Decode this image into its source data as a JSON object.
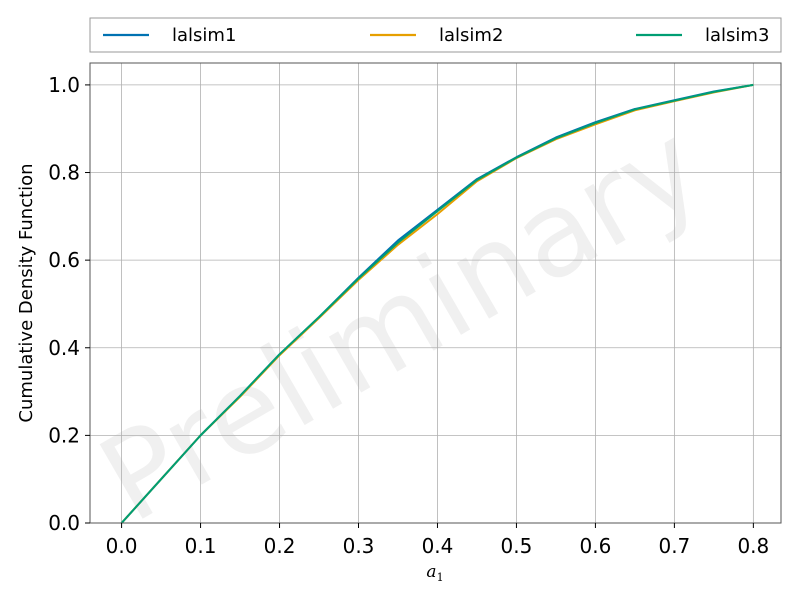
{
  "chart_data": {
    "type": "line",
    "title": "",
    "xlabel": "a",
    "xlabel_subscript": "1",
    "ylabel": "Cumulative Density Function",
    "xlim": [
      -0.04,
      0.835
    ],
    "ylim": [
      0,
      1.05
    ],
    "x_ticks": [
      "0.0",
      "0.1",
      "0.2",
      "0.3",
      "0.4",
      "0.5",
      "0.6",
      "0.7",
      "0.8"
    ],
    "x_tick_values": [
      0.0,
      0.1,
      0.2,
      0.3,
      0.4,
      0.5,
      0.6,
      0.7,
      0.8
    ],
    "y_ticks": [
      "0.0",
      "0.2",
      "0.4",
      "0.6",
      "0.8",
      "1.0"
    ],
    "y_tick_values": [
      0.0,
      0.2,
      0.4,
      0.6,
      0.8,
      1.0
    ],
    "grid": true,
    "legend_position": "top",
    "watermark": "Preliminary",
    "series": [
      {
        "name": "lalsim1",
        "color": "#0072b2",
        "x": [
          0.0,
          0.05,
          0.1,
          0.15,
          0.2,
          0.25,
          0.3,
          0.35,
          0.4,
          0.45,
          0.5,
          0.55,
          0.6,
          0.65,
          0.7,
          0.75,
          0.8
        ],
        "y": [
          0.0,
          0.1,
          0.2,
          0.29,
          0.385,
          0.47,
          0.56,
          0.645,
          0.715,
          0.785,
          0.835,
          0.88,
          0.915,
          0.945,
          0.965,
          0.985,
          1.0
        ]
      },
      {
        "name": "lalsim2",
        "color": "#e69f00",
        "x": [
          0.0,
          0.05,
          0.1,
          0.15,
          0.2,
          0.25,
          0.3,
          0.35,
          0.4,
          0.45,
          0.5,
          0.55,
          0.6,
          0.65,
          0.7,
          0.75,
          0.8
        ],
        "y": [
          0.0,
          0.1,
          0.2,
          0.288,
          0.383,
          0.468,
          0.555,
          0.635,
          0.705,
          0.78,
          0.833,
          0.876,
          0.91,
          0.942,
          0.963,
          0.983,
          1.0
        ]
      },
      {
        "name": "lalsim3",
        "color": "#009e73",
        "x": [
          0.0,
          0.05,
          0.1,
          0.15,
          0.2,
          0.25,
          0.3,
          0.35,
          0.4,
          0.45,
          0.5,
          0.55,
          0.6,
          0.65,
          0.7,
          0.75,
          0.8
        ],
        "y": [
          0.0,
          0.1,
          0.2,
          0.29,
          0.385,
          0.47,
          0.558,
          0.64,
          0.712,
          0.783,
          0.834,
          0.878,
          0.913,
          0.944,
          0.964,
          0.984,
          1.0
        ]
      }
    ]
  }
}
